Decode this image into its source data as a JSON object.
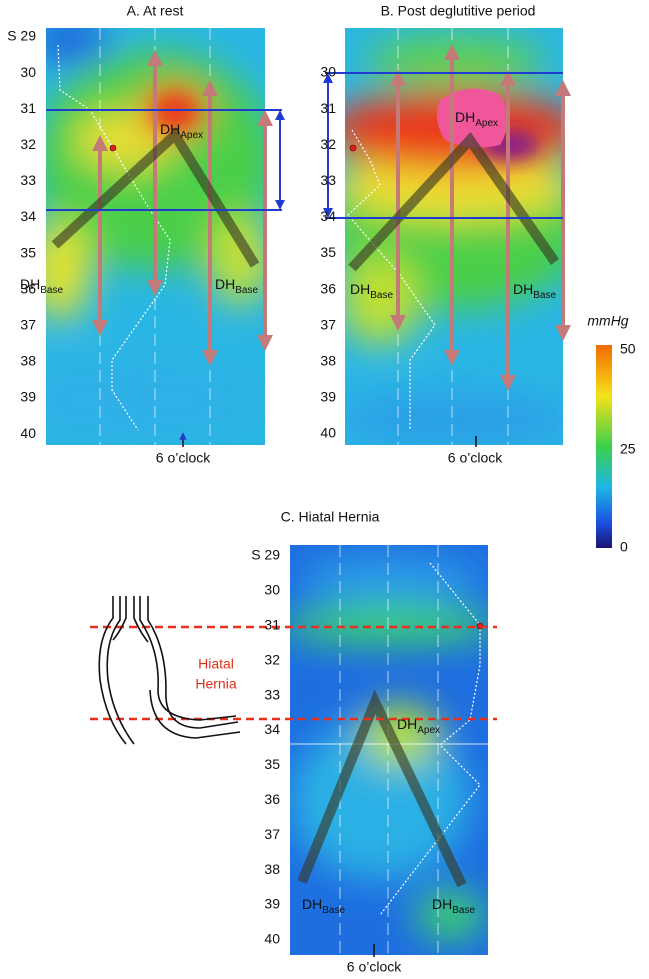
{
  "panels": [
    {
      "title": "A. At rest",
      "ylabels": [
        "S 29",
        "30",
        "31",
        "32",
        "33",
        "34",
        "35",
        "36",
        "37",
        "38",
        "39",
        "40"
      ],
      "apex": [
        "DH",
        "Apex"
      ],
      "bases": [
        [
          "DH",
          "Base"
        ],
        [
          "DH",
          "Base"
        ]
      ],
      "xlabel": "6 o’clock"
    },
    {
      "title": "B. Post deglutitive period",
      "ylabels": [
        "30",
        "31",
        "32",
        "33",
        "34",
        "35",
        "36",
        "37",
        "38",
        "39",
        "40"
      ],
      "apex": [
        "DH",
        "Apex"
      ],
      "bases": [
        [
          "DH",
          "Base"
        ],
        [
          "DH",
          "Base"
        ]
      ],
      "xlabel": "6 o’clock"
    },
    {
      "title": "C. Hiatal Hernia",
      "ylabels": [
        "S 29",
        "30",
        "31",
        "32",
        "33",
        "34",
        "35",
        "36",
        "37",
        "38",
        "39",
        "40"
      ],
      "apex": [
        "DH",
        "Apex"
      ],
      "bases": [
        [
          "DH",
          "Base"
        ],
        [
          "DH",
          "Base"
        ]
      ],
      "xlabel": "6 o’clock",
      "hernia_label": [
        "Hiatal",
        "Hernia"
      ]
    }
  ],
  "colorbar": {
    "unit": "mmHg",
    "ticks": [
      "50",
      "25",
      "0"
    ]
  }
}
